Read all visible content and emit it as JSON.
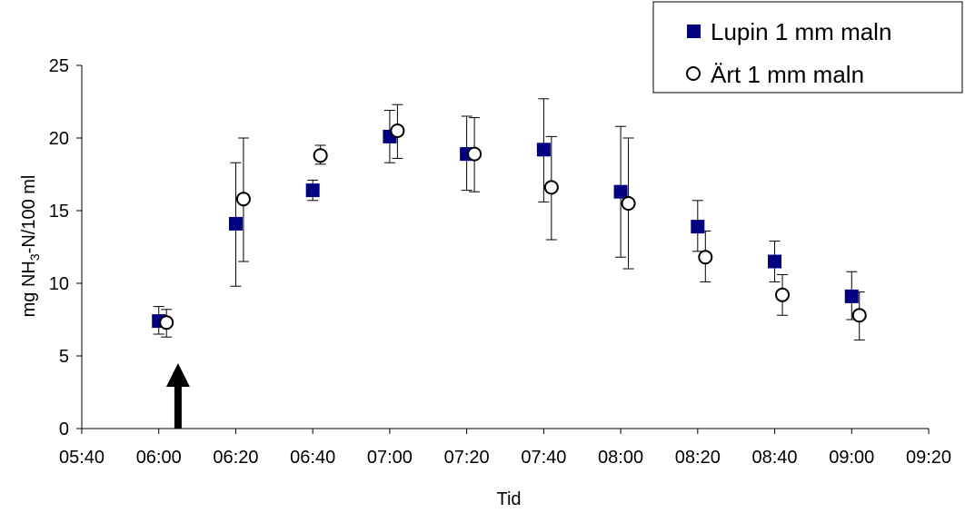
{
  "chart_data": {
    "type": "scatter",
    "xlabel": "Tid",
    "ylabel_main": "mg NH",
    "ylabel_sub": "3",
    "ylabel_rest": "-N/100 ml",
    "x_ticks": [
      "05:40",
      "06:00",
      "06:20",
      "06:40",
      "07:00",
      "07:20",
      "07:40",
      "08:00",
      "08:20",
      "08:40",
      "09:00",
      "09:20"
    ],
    "y_ticks": [
      "0",
      "5",
      "10",
      "15",
      "20",
      "25"
    ],
    "xlim": [
      "05:40",
      "09:20"
    ],
    "ylim": [
      0,
      25
    ],
    "grid": false,
    "legend_position": "top-right",
    "series": [
      {
        "name": "Lupin 1 mm maln",
        "marker": "filled-square",
        "color": "#000080",
        "points": [
          {
            "x": "06:00",
            "y": 7.4,
            "err_low": 6.5,
            "err_high": 8.4
          },
          {
            "x": "06:20",
            "y": 14.1,
            "err_low": 9.8,
            "err_high": 18.3
          },
          {
            "x": "06:40",
            "y": 16.4,
            "err_low": 15.7,
            "err_high": 17.1
          },
          {
            "x": "07:00",
            "y": 20.1,
            "err_low": 18.3,
            "err_high": 21.9
          },
          {
            "x": "07:20",
            "y": 18.9,
            "err_low": 16.4,
            "err_high": 21.5
          },
          {
            "x": "07:40",
            "y": 19.2,
            "err_low": 15.6,
            "err_high": 22.7
          },
          {
            "x": "08:00",
            "y": 16.3,
            "err_low": 11.8,
            "err_high": 20.8
          },
          {
            "x": "08:20",
            "y": 13.9,
            "err_low": 12.2,
            "err_high": 15.7
          },
          {
            "x": "08:40",
            "y": 11.5,
            "err_low": 10.1,
            "err_high": 12.9
          },
          {
            "x": "09:00",
            "y": 9.1,
            "err_low": 7.5,
            "err_high": 10.8
          }
        ]
      },
      {
        "name": "Ärt 1 mm maln",
        "marker": "open-circle",
        "color": "#000000",
        "points": [
          {
            "x": "06:02",
            "y": 7.3,
            "err_low": 6.3,
            "err_high": 8.2
          },
          {
            "x": "06:22",
            "y": 15.8,
            "err_low": 11.5,
            "err_high": 20.0
          },
          {
            "x": "06:42",
            "y": 18.8,
            "err_low": 18.2,
            "err_high": 19.5
          },
          {
            "x": "07:02",
            "y": 20.5,
            "err_low": 18.6,
            "err_high": 22.3
          },
          {
            "x": "07:22",
            "y": 18.9,
            "err_low": 16.3,
            "err_high": 21.4
          },
          {
            "x": "07:42",
            "y": 16.6,
            "err_low": 13.0,
            "err_high": 20.1
          },
          {
            "x": "08:02",
            "y": 15.5,
            "err_low": 11.0,
            "err_high": 20.0
          },
          {
            "x": "08:22",
            "y": 11.8,
            "err_low": 10.1,
            "err_high": 13.6
          },
          {
            "x": "08:42",
            "y": 9.2,
            "err_low": 7.8,
            "err_high": 10.6
          },
          {
            "x": "09:02",
            "y": 7.8,
            "err_low": 6.1,
            "err_high": 9.4
          }
        ]
      }
    ],
    "annotation": {
      "type": "upward-arrow",
      "x": "06:05",
      "y": 0,
      "y_tip": 4.5,
      "color": "#000000"
    }
  }
}
